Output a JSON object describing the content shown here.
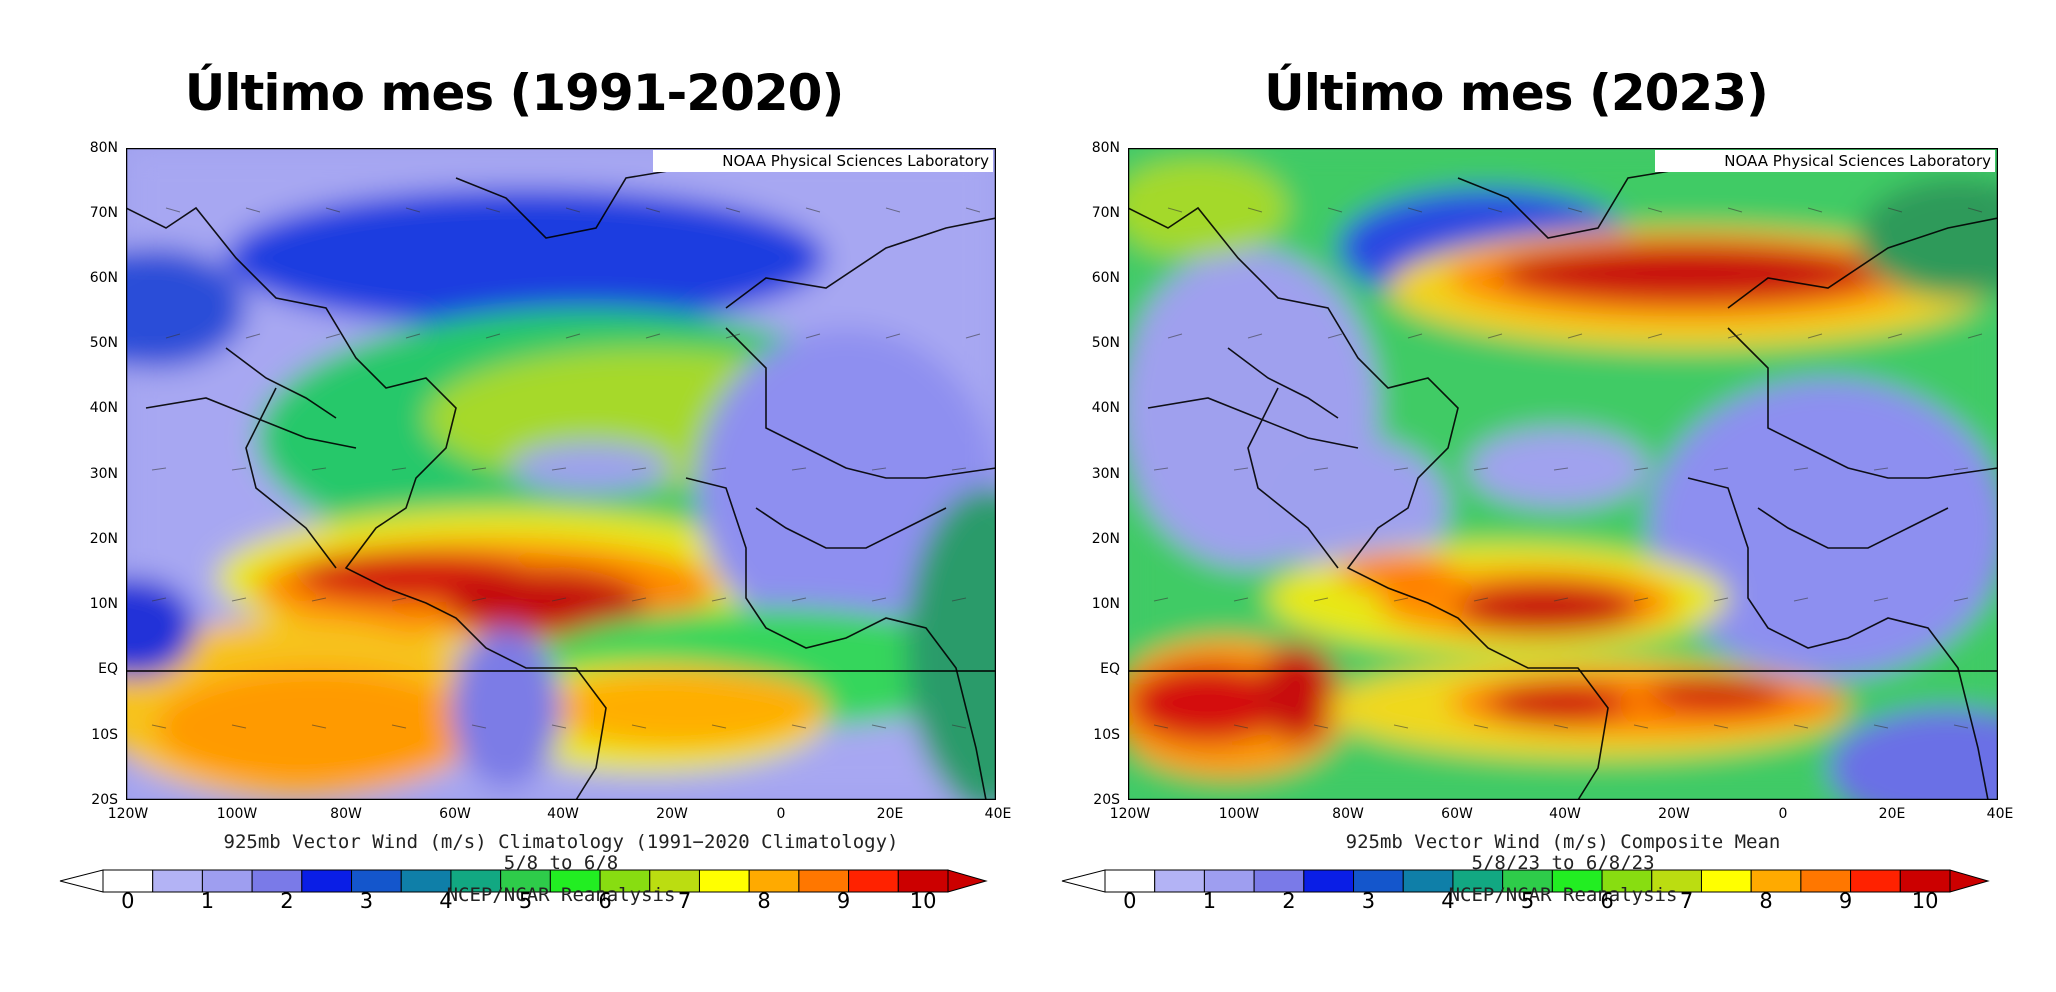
{
  "panels": [
    {
      "id": "left",
      "title": "Último mes (1991-2020)",
      "credit": "NOAA Physical Sciences Laboratory",
      "caption_line1": "925mb Vector Wind (m/s) Climatology (1991−2020 Climatology)",
      "caption_line2": "5/8  to 6/8",
      "caption_line3": "NCEP/NCAR Reanalysis"
    },
    {
      "id": "right",
      "title": "Último mes (2023)",
      "credit": "NOAA Physical Sciences Laboratory",
      "caption_line1": "925mb Vector Wind (m/s) Composite Mean",
      "caption_line2": "5/8/23  to 6/8/23",
      "caption_line3": "NCEP/NCAR Reanalysis"
    }
  ],
  "lat_labels": [
    "80N",
    "70N",
    "60N",
    "50N",
    "40N",
    "30N",
    "20N",
    "10N",
    "EQ",
    "10S",
    "20S"
  ],
  "lon_labels": [
    "120W",
    "100W",
    "80W",
    "60W",
    "40W",
    "20W",
    "0",
    "20E",
    "40E"
  ],
  "colorbar": {
    "unit": "m/s",
    "labels": [
      "0",
      "1",
      "2",
      "3",
      "4",
      "5",
      "6",
      "7",
      "8",
      "9",
      "10"
    ],
    "colors": [
      "#ffffff",
      "#b3b3f5",
      "#9e9ef0",
      "#7a7ae8",
      "#0a1ee6",
      "#1456cc",
      "#0f7fa8",
      "#12a882",
      "#2ecc4a",
      "#22ee22",
      "#88dd11",
      "#bbdd11",
      "#ffff00",
      "#ffaa00",
      "#ff7700",
      "#ff2200",
      "#cc0000"
    ]
  }
}
